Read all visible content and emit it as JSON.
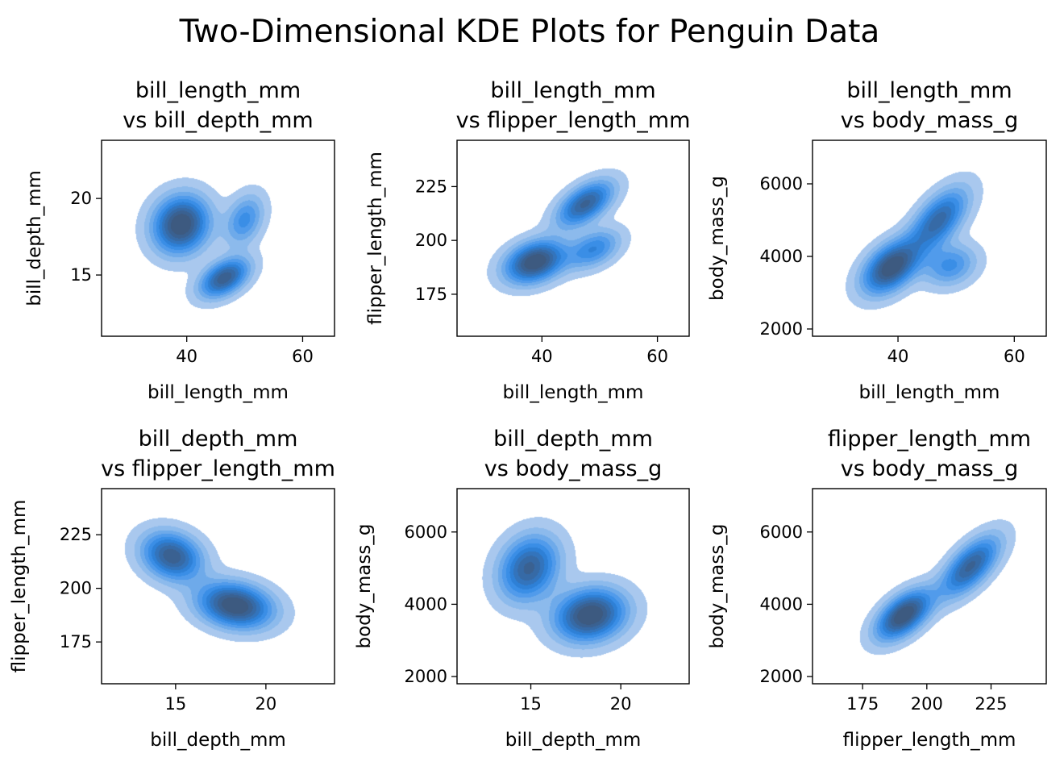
{
  "figure": {
    "title": "Two-Dimensional KDE Plots for Penguin Data"
  },
  "chart_data": [
    {
      "type": "kde2d",
      "title": [
        "bill_length_mm",
        "vs bill_depth_mm"
      ],
      "xlabel": "bill_length_mm",
      "ylabel": "bill_depth_mm",
      "xlim": [
        25.3,
        65.5
      ],
      "ylim": [
        11.0,
        23.8
      ],
      "xticks": [
        40,
        60
      ],
      "yticks": [
        15,
        20
      ],
      "fill_color": "#1f77b4",
      "density_components": [
        {
          "cx": 39.0,
          "cy": 18.3,
          "sx": 3.2,
          "sy": 1.25,
          "rho": 0.1,
          "w": 1.0
        },
        {
          "cx": 46.5,
          "cy": 14.8,
          "sx": 2.8,
          "sy": 0.85,
          "rho": 0.45,
          "w": 0.85
        },
        {
          "cx": 50.0,
          "cy": 18.6,
          "sx": 2.2,
          "sy": 1.1,
          "rho": 0.3,
          "w": 0.45
        }
      ]
    },
    {
      "type": "kde2d",
      "title": [
        "bill_length_mm",
        "vs flipper_length_mm"
      ],
      "xlabel": "bill_length_mm",
      "ylabel": "flipper_length_mm",
      "xlim": [
        25.3,
        65.5
      ],
      "ylim": [
        155.5,
        246.5
      ],
      "xticks": [
        40,
        60
      ],
      "yticks": [
        175,
        200,
        225
      ],
      "fill_color": "#1f77b4",
      "density_components": [
        {
          "cx": 38.8,
          "cy": 190,
          "sx": 3.4,
          "sy": 6.5,
          "rho": 0.3,
          "w": 1.0
        },
        {
          "cx": 47.5,
          "cy": 217,
          "sx": 3.2,
          "sy": 7.0,
          "rho": 0.55,
          "w": 0.8
        },
        {
          "cx": 49.0,
          "cy": 196,
          "sx": 3.0,
          "sy": 6.0,
          "rho": 0.4,
          "w": 0.5
        }
      ]
    },
    {
      "type": "kde2d",
      "title": [
        "bill_length_mm",
        "vs body_mass_g"
      ],
      "xlabel": "bill_length_mm",
      "ylabel": "body_mass_g",
      "xlim": [
        25.3,
        65.5
      ],
      "ylim": [
        1800,
        7200
      ],
      "xticks": [
        40,
        60
      ],
      "yticks": [
        2000,
        4000,
        6000
      ],
      "fill_color": "#1f77b4",
      "density_components": [
        {
          "cx": 38.8,
          "cy": 3700,
          "sx": 3.2,
          "sy": 480,
          "rho": 0.45,
          "w": 1.0
        },
        {
          "cx": 47.0,
          "cy": 5000,
          "sx": 3.3,
          "sy": 580,
          "rho": 0.6,
          "w": 0.75
        },
        {
          "cx": 49.0,
          "cy": 3750,
          "sx": 3.0,
          "sy": 380,
          "rho": 0.2,
          "w": 0.45
        }
      ]
    },
    {
      "type": "kde2d",
      "title": [
        "bill_depth_mm",
        "vs flipper_length_mm"
      ],
      "xlabel": "bill_depth_mm",
      "ylabel": "flipper_length_mm",
      "xlim": [
        10.9,
        23.8
      ],
      "ylim": [
        155.5,
        246.5
      ],
      "xticks": [
        15,
        20
      ],
      "yticks": [
        175,
        200,
        225
      ],
      "fill_color": "#1f77b4",
      "density_components": [
        {
          "cx": 14.8,
          "cy": 215,
          "sx": 1.1,
          "sy": 7.5,
          "rho": -0.2,
          "w": 0.85
        },
        {
          "cx": 18.3,
          "cy": 192,
          "sx": 1.35,
          "sy": 7.0,
          "rho": -0.2,
          "w": 1.0
        }
      ]
    },
    {
      "type": "kde2d",
      "title": [
        "bill_depth_mm",
        "vs body_mass_g"
      ],
      "xlabel": "bill_depth_mm",
      "ylabel": "body_mass_g",
      "xlim": [
        10.9,
        23.8
      ],
      "ylim": [
        1800,
        7200
      ],
      "xticks": [
        15,
        20
      ],
      "yticks": [
        2000,
        4000,
        6000
      ],
      "fill_color": "#1f77b4",
      "density_components": [
        {
          "cx": 14.9,
          "cy": 5000,
          "sx": 1.1,
          "sy": 600,
          "rho": 0.2,
          "w": 0.8
        },
        {
          "cx": 18.3,
          "cy": 3700,
          "sx": 1.3,
          "sy": 480,
          "rho": 0.15,
          "w": 1.0
        }
      ]
    },
    {
      "type": "kde2d",
      "title": [
        "flipper_length_mm",
        "vs body_mass_g"
      ],
      "xlabel": "flipper_length_mm",
      "ylabel": "body_mass_g",
      "xlim": [
        155.5,
        246.5
      ],
      "ylim": [
        1800,
        7200
      ],
      "xticks": [
        175,
        200,
        225
      ],
      "yticks": [
        2000,
        4000,
        6000
      ],
      "fill_color": "#1f77b4",
      "density_components": [
        {
          "cx": 191,
          "cy": 3700,
          "sx": 7.0,
          "sy": 450,
          "rho": 0.55,
          "w": 1.0
        },
        {
          "cx": 217,
          "cy": 5050,
          "sx": 7.5,
          "sy": 550,
          "rho": 0.65,
          "w": 0.8
        }
      ]
    }
  ]
}
